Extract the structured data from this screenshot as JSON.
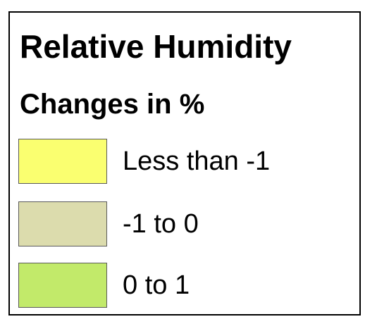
{
  "legend": {
    "title": "Relative Humidity",
    "subtitle": "Changes in %",
    "items": [
      {
        "label": "Less than -1",
        "color": "#faff70"
      },
      {
        "label": "-1 to 0",
        "color": "#dcdcad"
      },
      {
        "label": "0 to 1",
        "color": "#c2ea6a"
      }
    ]
  }
}
